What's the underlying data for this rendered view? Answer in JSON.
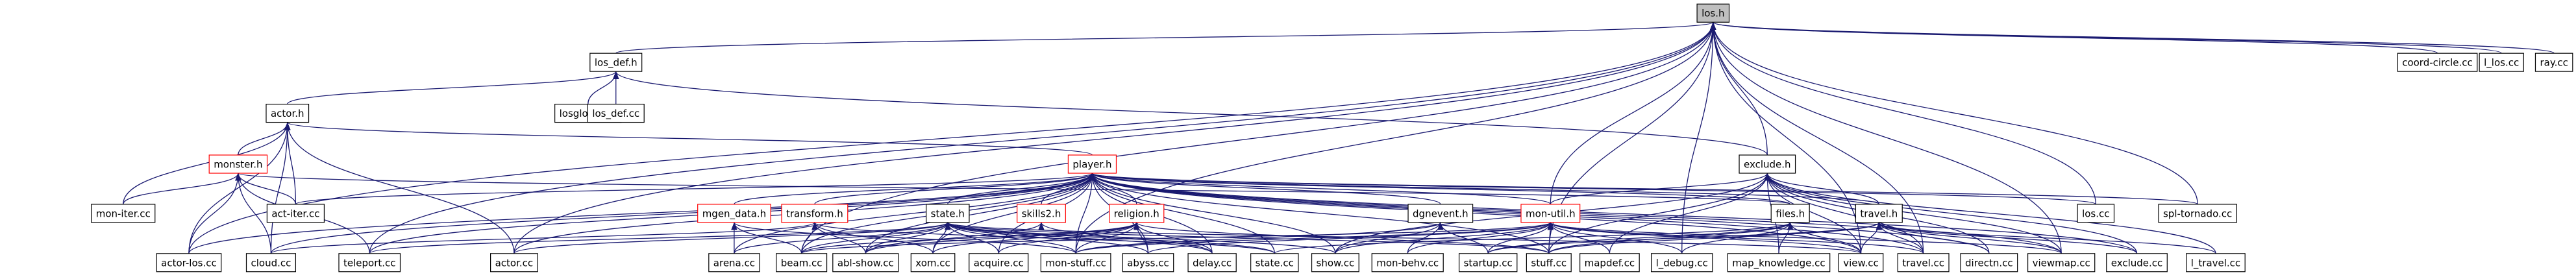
{
  "nodes": [
    {
      "label": "los.h"
    },
    {
      "label": "coord-circle.cc"
    },
    {
      "label": "l_los.cc"
    },
    {
      "label": "ray.cc"
    },
    {
      "label": "los_def.h"
    },
    {
      "label": "losglobal.cc"
    },
    {
      "label": "los_def.cc"
    },
    {
      "label": "actor.h"
    },
    {
      "label": "monster.h"
    },
    {
      "label": "player.h"
    },
    {
      "label": "exclude.h"
    },
    {
      "label": "mon-iter.cc"
    },
    {
      "label": "act-iter.cc"
    },
    {
      "label": "mgen_data.h"
    },
    {
      "label": "transform.h"
    },
    {
      "label": "state.h"
    },
    {
      "label": "skills2.h"
    },
    {
      "label": "religion.h"
    },
    {
      "label": "dgnevent.h"
    },
    {
      "label": "mon-util.h"
    },
    {
      "label": "files.h"
    },
    {
      "label": "travel.h"
    },
    {
      "label": "los.cc"
    },
    {
      "label": "spl-tornado.cc"
    },
    {
      "label": "actor-los.cc"
    },
    {
      "label": "cloud.cc"
    },
    {
      "label": "teleport.cc"
    },
    {
      "label": "actor.cc"
    },
    {
      "label": "arena.cc"
    },
    {
      "label": "beam.cc"
    },
    {
      "label": "abl-show.cc"
    },
    {
      "label": "xom.cc"
    },
    {
      "label": "acquire.cc"
    },
    {
      "label": "mon-stuff.cc"
    },
    {
      "label": "abyss.cc"
    },
    {
      "label": "delay.cc"
    },
    {
      "label": "state.cc"
    },
    {
      "label": "show.cc"
    },
    {
      "label": "mon-behv.cc"
    },
    {
      "label": "startup.cc"
    },
    {
      "label": "stuff.cc"
    },
    {
      "label": "mapdef.cc"
    },
    {
      "label": "l_debug.cc"
    },
    {
      "label": "map_knowledge.cc"
    },
    {
      "label": "view.cc"
    },
    {
      "label": "travel.cc"
    },
    {
      "label": "directn.cc"
    },
    {
      "label": "viewmap.cc"
    },
    {
      "label": "exclude.cc"
    },
    {
      "label": "l_travel.cc"
    }
  ]
}
